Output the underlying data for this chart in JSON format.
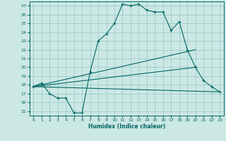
{
  "title": "",
  "xlabel": "Humidex (Indice chaleur)",
  "bg_color": "#cce8e4",
  "grid_color": "#99cccc",
  "line_color": "#006666",
  "xlim": [
    -0.5,
    23.5
  ],
  "ylim": [
    14.5,
    27.5
  ],
  "xticks": [
    0,
    1,
    2,
    3,
    4,
    5,
    6,
    7,
    8,
    9,
    10,
    11,
    12,
    13,
    14,
    15,
    16,
    17,
    18,
    19,
    20,
    21,
    22,
    23
  ],
  "yticks": [
    15,
    16,
    17,
    18,
    19,
    20,
    21,
    22,
    23,
    24,
    25,
    26,
    27
  ],
  "main_curve": {
    "x": [
      0,
      1,
      2,
      3,
      4,
      5,
      6,
      7,
      8,
      9,
      10,
      11,
      12,
      13,
      14,
      15,
      16,
      17,
      18,
      19,
      20,
      21,
      22,
      23
    ],
    "y": [
      17.8,
      18.2,
      17.0,
      16.5,
      16.5,
      14.8,
      14.8,
      19.5,
      23.0,
      23.8,
      25.0,
      27.2,
      27.0,
      27.2,
      26.5,
      26.3,
      26.3,
      24.2,
      25.2,
      22.0,
      20.0,
      18.5,
      17.8,
      17.2
    ]
  },
  "line1": {
    "x": [
      0,
      23
    ],
    "y": [
      17.8,
      17.2
    ]
  },
  "line2": {
    "x": [
      0,
      20
    ],
    "y": [
      17.8,
      22.0
    ]
  },
  "line3": {
    "x": [
      0,
      20
    ],
    "y": [
      17.8,
      20.0
    ]
  }
}
